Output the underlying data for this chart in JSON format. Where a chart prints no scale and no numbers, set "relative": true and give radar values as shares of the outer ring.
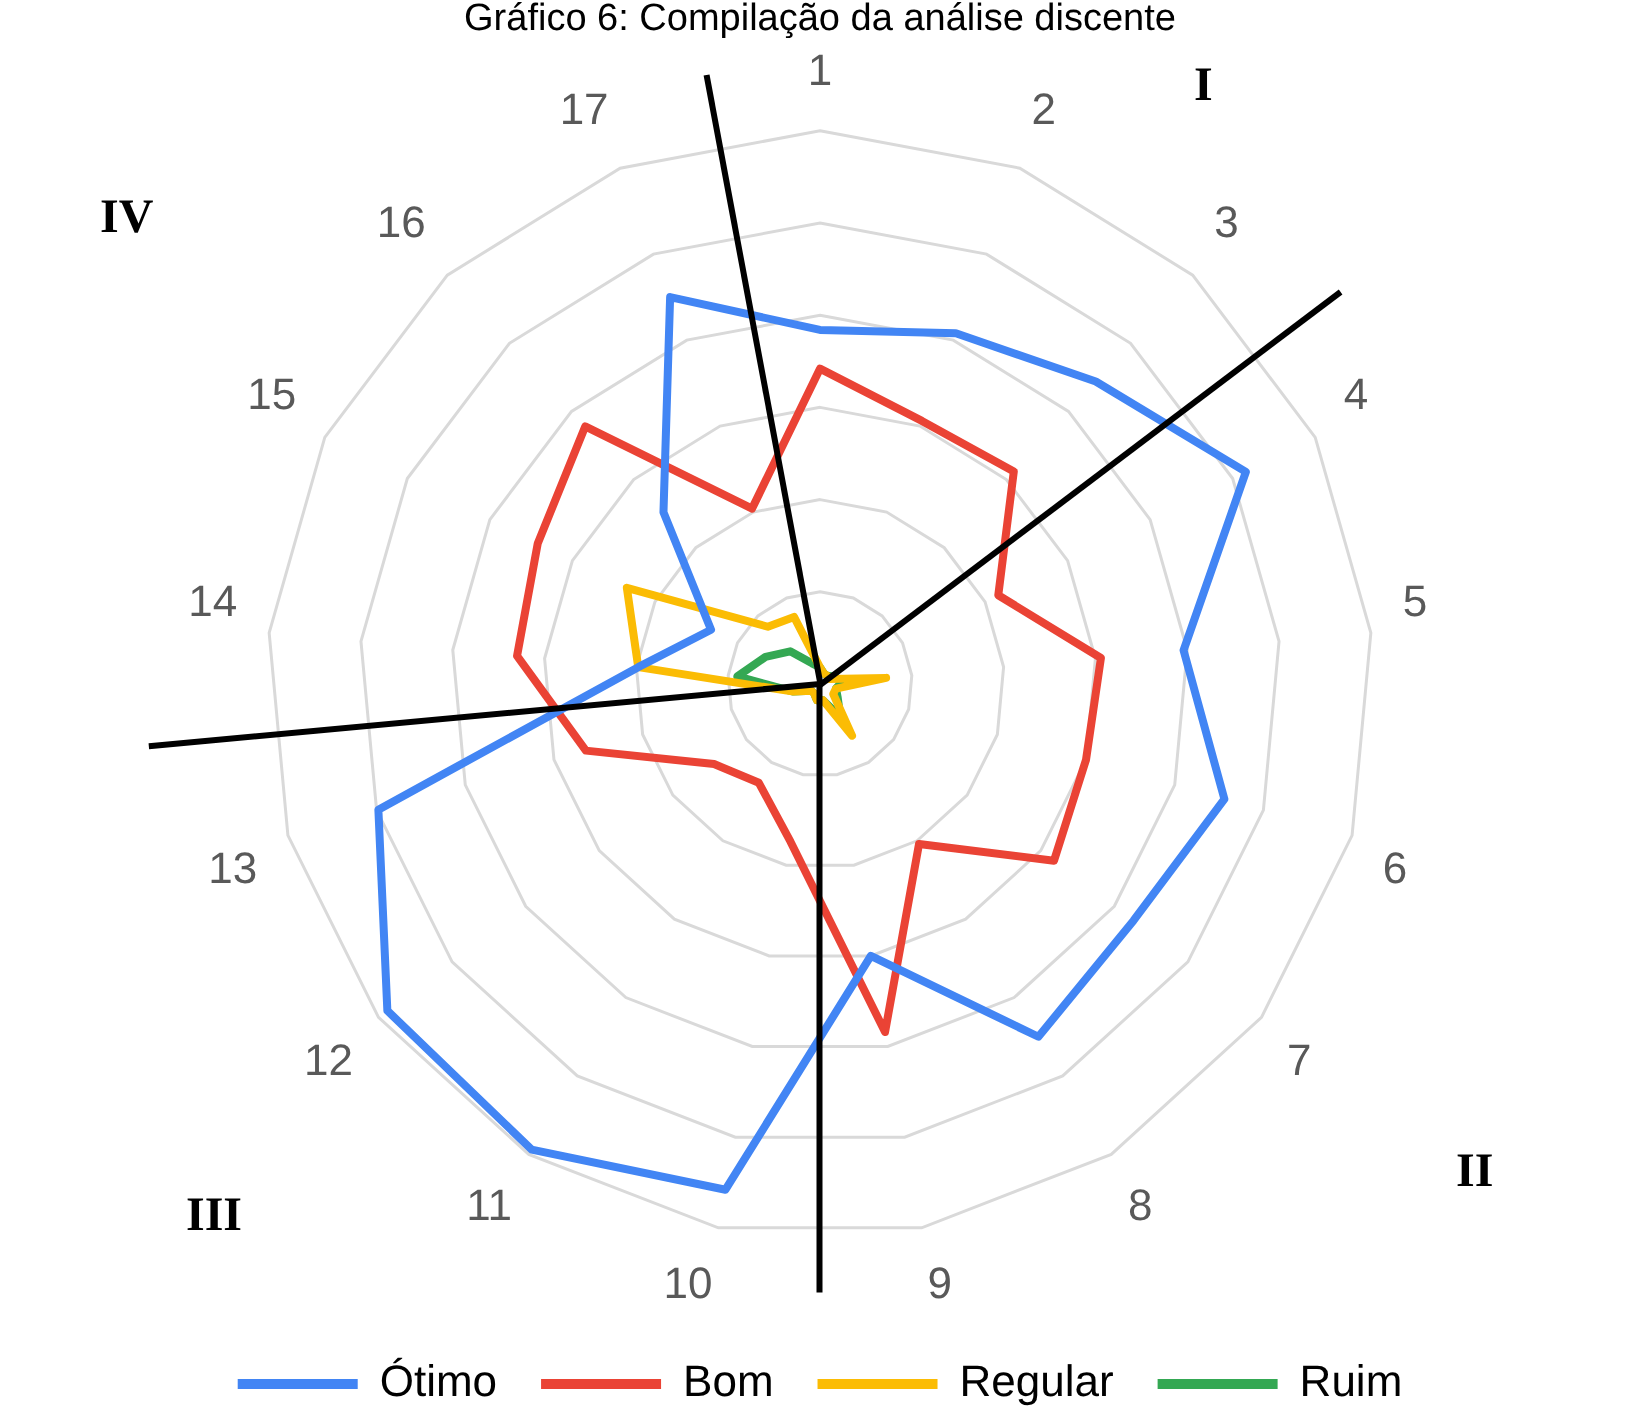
{
  "chart_data": {
    "type": "radar",
    "title": "Gráfico 6: Compilação da análise discente",
    "relative": true,
    "categories": [
      "1",
      "2",
      "3",
      "4",
      "5",
      "6",
      "7",
      "8",
      "9",
      "10",
      "11",
      "12",
      "13",
      "14",
      "15",
      "16",
      "17"
    ],
    "series": [
      {
        "name": "Ótimo",
        "color": "#4285f4",
        "values": [
          0.64,
          0.68,
          0.74,
          0.86,
          0.66,
          0.76,
          0.71,
          0.75,
          0.5,
          0.93,
          0.99,
          0.98,
          0.83,
          0.33,
          0.22,
          0.42,
          0.75
        ]
      },
      {
        "name": "Bom",
        "color": "#ea4335",
        "values": [
          0.57,
          0.51,
          0.52,
          0.36,
          0.51,
          0.5,
          0.53,
          0.34,
          0.64,
          0.29,
          0.21,
          0.24,
          0.44,
          0.55,
          0.57,
          0.63,
          0.34
        ]
      },
      {
        "name": "Regular",
        "color": "#fbbc04",
        "values": [
          0.03,
          0.02,
          0.02,
          0.02,
          0.12,
          0.03,
          0.03,
          0.11,
          0.03,
          0.03,
          0.02,
          0.02,
          0.05,
          0.33,
          0.39,
          0.14,
          0.13
        ]
      },
      {
        "name": "Ruim",
        "color": "#34a853",
        "values": [
          0.03,
          0.02,
          0.02,
          0.03,
          0.04,
          0.03,
          0.04,
          0.07,
          0.03,
          0.03,
          0.02,
          0.02,
          0.05,
          0.15,
          0.11,
          0.08,
          0.04
        ]
      }
    ],
    "annotations": [
      "I",
      "II",
      "III",
      "IV"
    ],
    "grid": true,
    "legend": "bottom",
    "marker": "none",
    "line_style": "solid"
  }
}
